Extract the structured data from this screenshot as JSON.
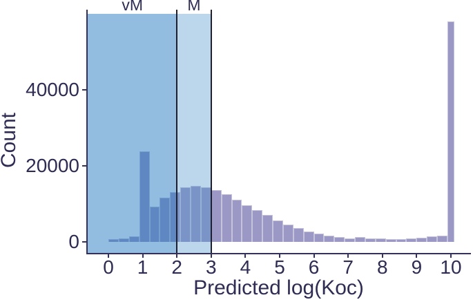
{
  "figure": {
    "background": "#ffffff",
    "text_color": "#2e2c52",
    "axis_color": "#33315a"
  },
  "chart_data": {
    "type": "bar",
    "variant": "histogram",
    "title": "",
    "xlabel": "Predicted log(Koc)",
    "ylabel": "Count",
    "x_ticks": [
      0,
      1,
      2,
      3,
      4,
      5,
      6,
      7,
      8,
      9,
      10
    ],
    "y_ticks": [
      0,
      20000,
      40000
    ],
    "x_range": [
      -0.605,
      10.545
    ],
    "y_range": [
      -2900,
      61000
    ],
    "grid": false,
    "legend": false,
    "bar_color": "#9b98c6",
    "bar_border_color": "#c6c4dd",
    "vline_color": "#1f1f2e",
    "bins": [
      {
        "x0": 0.0,
        "x1": 0.3,
        "count": 650
      },
      {
        "x0": 0.3,
        "x1": 0.6,
        "count": 1000
      },
      {
        "x0": 0.6,
        "x1": 0.9,
        "count": 1450
      },
      {
        "x0": 0.9,
        "x1": 1.2,
        "count": 23800
      },
      {
        "x0": 1.2,
        "x1": 1.5,
        "count": 9300
      },
      {
        "x0": 1.5,
        "x1": 1.8,
        "count": 11600
      },
      {
        "x0": 1.8,
        "x1": 2.1,
        "count": 13000
      },
      {
        "x0": 2.1,
        "x1": 2.4,
        "count": 14300
      },
      {
        "x0": 2.4,
        "x1": 2.7,
        "count": 14700
      },
      {
        "x0": 2.7,
        "x1": 3.0,
        "count": 14400
      },
      {
        "x0": 3.0,
        "x1": 3.3,
        "count": 13700
      },
      {
        "x0": 3.3,
        "x1": 3.6,
        "count": 12600
      },
      {
        "x0": 3.6,
        "x1": 3.9,
        "count": 11100
      },
      {
        "x0": 3.9,
        "x1": 4.2,
        "count": 9700
      },
      {
        "x0": 4.2,
        "x1": 4.5,
        "count": 8300
      },
      {
        "x0": 4.5,
        "x1": 4.8,
        "count": 7000
      },
      {
        "x0": 4.8,
        "x1": 5.1,
        "count": 5700
      },
      {
        "x0": 5.1,
        "x1": 5.4,
        "count": 4600
      },
      {
        "x0": 5.4,
        "x1": 5.7,
        "count": 3600
      },
      {
        "x0": 5.7,
        "x1": 6.0,
        "count": 2800
      },
      {
        "x0": 6.0,
        "x1": 6.3,
        "count": 2100
      },
      {
        "x0": 6.3,
        "x1": 6.6,
        "count": 1600
      },
      {
        "x0": 6.6,
        "x1": 6.9,
        "count": 1200
      },
      {
        "x0": 6.9,
        "x1": 7.2,
        "count": 1000
      },
      {
        "x0": 7.2,
        "x1": 7.5,
        "count": 1300
      },
      {
        "x0": 7.5,
        "x1": 7.8,
        "count": 1000
      },
      {
        "x0": 7.8,
        "x1": 8.1,
        "count": 900
      },
      {
        "x0": 8.1,
        "x1": 8.4,
        "count": 800
      },
      {
        "x0": 8.4,
        "x1": 8.7,
        "count": 800
      },
      {
        "x0": 8.7,
        "x1": 9.0,
        "count": 900
      },
      {
        "x0": 9.0,
        "x1": 9.3,
        "count": 1100
      },
      {
        "x0": 9.3,
        "x1": 9.6,
        "count": 1400
      },
      {
        "x0": 9.6,
        "x1": 9.9,
        "count": 1700
      },
      {
        "x0": 9.9,
        "x1": 10.1,
        "count": 58000
      }
    ],
    "regions": [
      {
        "label": "vM",
        "x0": -0.605,
        "x1": 2,
        "ymax": 60000,
        "fill": "rgba(33,120,192,0.49)",
        "label_x": 0.7
      },
      {
        "label": "M",
        "x0": 2,
        "x1": 3,
        "ymax": 60000,
        "fill": "rgba(64,141,201,0.35)",
        "label_x": 2.5
      }
    ],
    "vlines": [
      2,
      3
    ]
  }
}
